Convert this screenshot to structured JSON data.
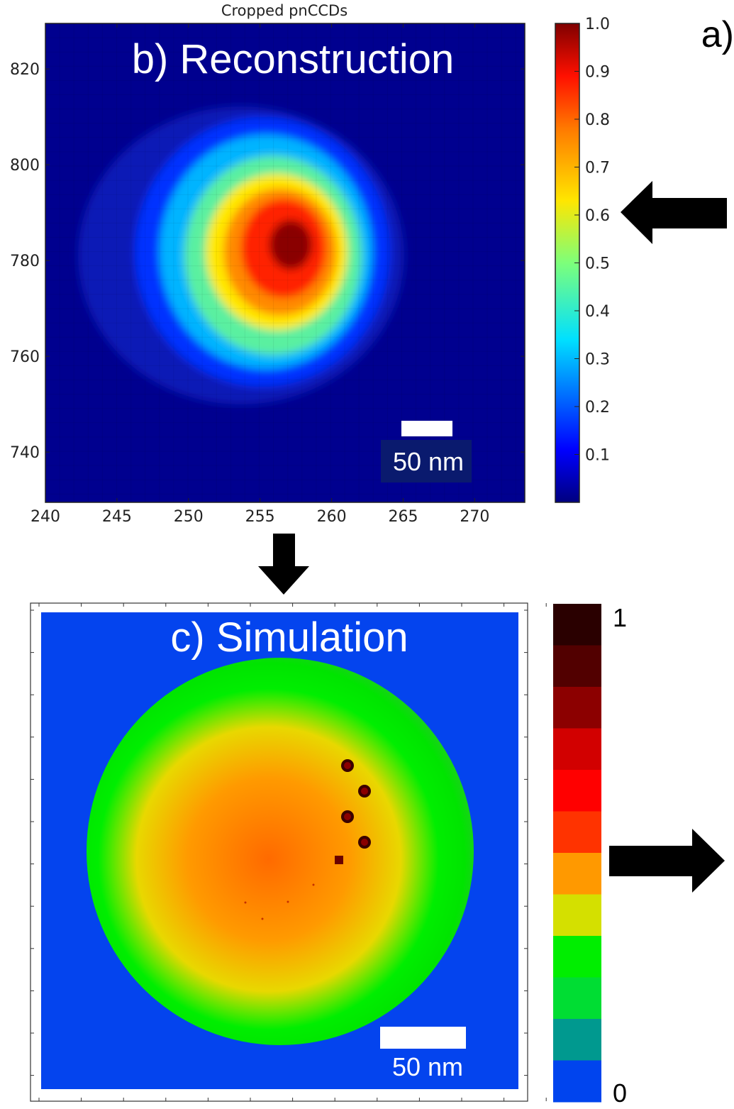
{
  "figure": {
    "panel_a_label": "a)",
    "top_plot": {
      "title": "Cropped pnCCDs",
      "overlay_label": "b) Reconstruction",
      "scale_bar_label": "50 nm",
      "x_ticks": [
        "240",
        "245",
        "250",
        "255",
        "260",
        "265",
        "270"
      ],
      "y_ticks": [
        "820",
        "800",
        "780",
        "760",
        "740"
      ],
      "colorbar_ticks": [
        "1.0",
        "0.9",
        "0.8",
        "0.7",
        "0.6",
        "0.5",
        "0.4",
        "0.3",
        "0.2",
        "0.1"
      ]
    },
    "bottom_plot": {
      "overlay_label": "c) Simulation",
      "scale_bar_label": "50 nm",
      "colorbar_top_label": "1",
      "colorbar_bottom_label": "0",
      "colorbar_colors": [
        "#2a0000",
        "#520000",
        "#8c0000",
        "#d20000",
        "#ff0000",
        "#ff3300",
        "#ff9900",
        "#d4e000",
        "#00ee00",
        "#00dd33",
        "#00998f",
        "#0044ee"
      ]
    }
  },
  "chart_data": [
    {
      "type": "heatmap",
      "title": "Cropped pnCCDs",
      "xlim": [
        240,
        273.5
      ],
      "ylim": [
        729.5,
        829.5
      ],
      "x_ticks": [
        240,
        245,
        250,
        255,
        260,
        265,
        270
      ],
      "y_ticks": [
        740,
        760,
        780,
        800,
        820
      ],
      "colorbar_range": [
        0,
        1.0
      ],
      "colormap": "jet",
      "peak": {
        "x": 257.5,
        "y": 782,
        "value": 1.0
      }
    },
    {
      "type": "heatmap",
      "colorbar_range": [
        0,
        1
      ],
      "colormap": "discrete 12-step",
      "description_levels": 12
    }
  ]
}
